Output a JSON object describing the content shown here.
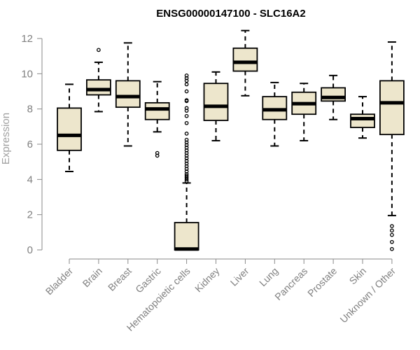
{
  "chart_data": {
    "type": "boxplot",
    "title": "ENSG00000147100 - SLC16A2",
    "xlabel": "",
    "ylabel": "Expression",
    "ylim": [
      0,
      12
    ],
    "yticks": [
      0,
      2,
      4,
      6,
      8,
      10,
      12
    ],
    "box_color": "#ede6cc",
    "categories": [
      "Bladder",
      "Brain",
      "Breast",
      "Gastric",
      "Hematopoietic cells",
      "Kidney",
      "Liver",
      "Lung",
      "Pancreas",
      "Prostate",
      "Skin",
      "Unknown / Other"
    ],
    "boxes": [
      {
        "name": "Bladder",
        "whisker_low": 4.45,
        "q1": 5.65,
        "median": 6.5,
        "q3": 8.05,
        "whisker_high": 9.4,
        "outliers": []
      },
      {
        "name": "Brain",
        "whisker_low": 7.85,
        "q1": 8.8,
        "median": 9.1,
        "q3": 9.65,
        "whisker_high": 10.65,
        "outliers": [
          11.35
        ]
      },
      {
        "name": "Breast",
        "whisker_low": 5.9,
        "q1": 8.1,
        "median": 8.7,
        "q3": 9.6,
        "whisker_high": 11.75,
        "outliers": []
      },
      {
        "name": "Gastric",
        "whisker_low": 6.7,
        "q1": 7.4,
        "median": 8.0,
        "q3": 8.35,
        "whisker_high": 9.55,
        "outliers": [
          5.5,
          5.35
        ]
      },
      {
        "name": "Hematopoietic cells",
        "whisker_low": 0.0,
        "q1": 0.0,
        "median": 0.05,
        "q3": 1.55,
        "whisker_high": 3.8,
        "outliers": [
          3.9,
          4.0,
          4.1,
          4.2,
          4.3,
          4.45,
          4.6,
          4.75,
          4.9,
          5.05,
          5.2,
          5.35,
          5.5,
          5.65,
          5.8,
          5.95,
          6.1,
          6.25,
          6.6,
          7.2,
          7.6,
          7.9,
          8.05,
          8.45,
          8.5,
          9.0,
          9.4,
          9.6,
          9.75,
          9.9
        ]
      },
      {
        "name": "Kidney",
        "whisker_low": 6.2,
        "q1": 7.35,
        "median": 8.15,
        "q3": 9.45,
        "whisker_high": 10.1,
        "outliers": []
      },
      {
        "name": "Liver",
        "whisker_low": 8.75,
        "q1": 10.15,
        "median": 10.65,
        "q3": 11.45,
        "whisker_high": 12.45,
        "outliers": []
      },
      {
        "name": "Lung",
        "whisker_low": 5.9,
        "q1": 7.4,
        "median": 7.95,
        "q3": 8.7,
        "whisker_high": 9.5,
        "outliers": []
      },
      {
        "name": "Pancreas",
        "whisker_low": 6.2,
        "q1": 7.7,
        "median": 8.3,
        "q3": 8.95,
        "whisker_high": 9.45,
        "outliers": []
      },
      {
        "name": "Prostate",
        "whisker_low": 7.4,
        "q1": 8.45,
        "median": 8.65,
        "q3": 9.2,
        "whisker_high": 9.9,
        "outliers": []
      },
      {
        "name": "Skin",
        "whisker_low": 6.35,
        "q1": 6.95,
        "median": 7.45,
        "q3": 7.7,
        "whisker_high": 8.7,
        "outliers": []
      },
      {
        "name": "Unknown / Other",
        "whisker_low": 1.95,
        "q1": 6.55,
        "median": 8.35,
        "q3": 9.6,
        "whisker_high": 11.8,
        "outliers": [
          1.35,
          1.1,
          0.85,
          0.45,
          0.05
        ]
      }
    ]
  }
}
